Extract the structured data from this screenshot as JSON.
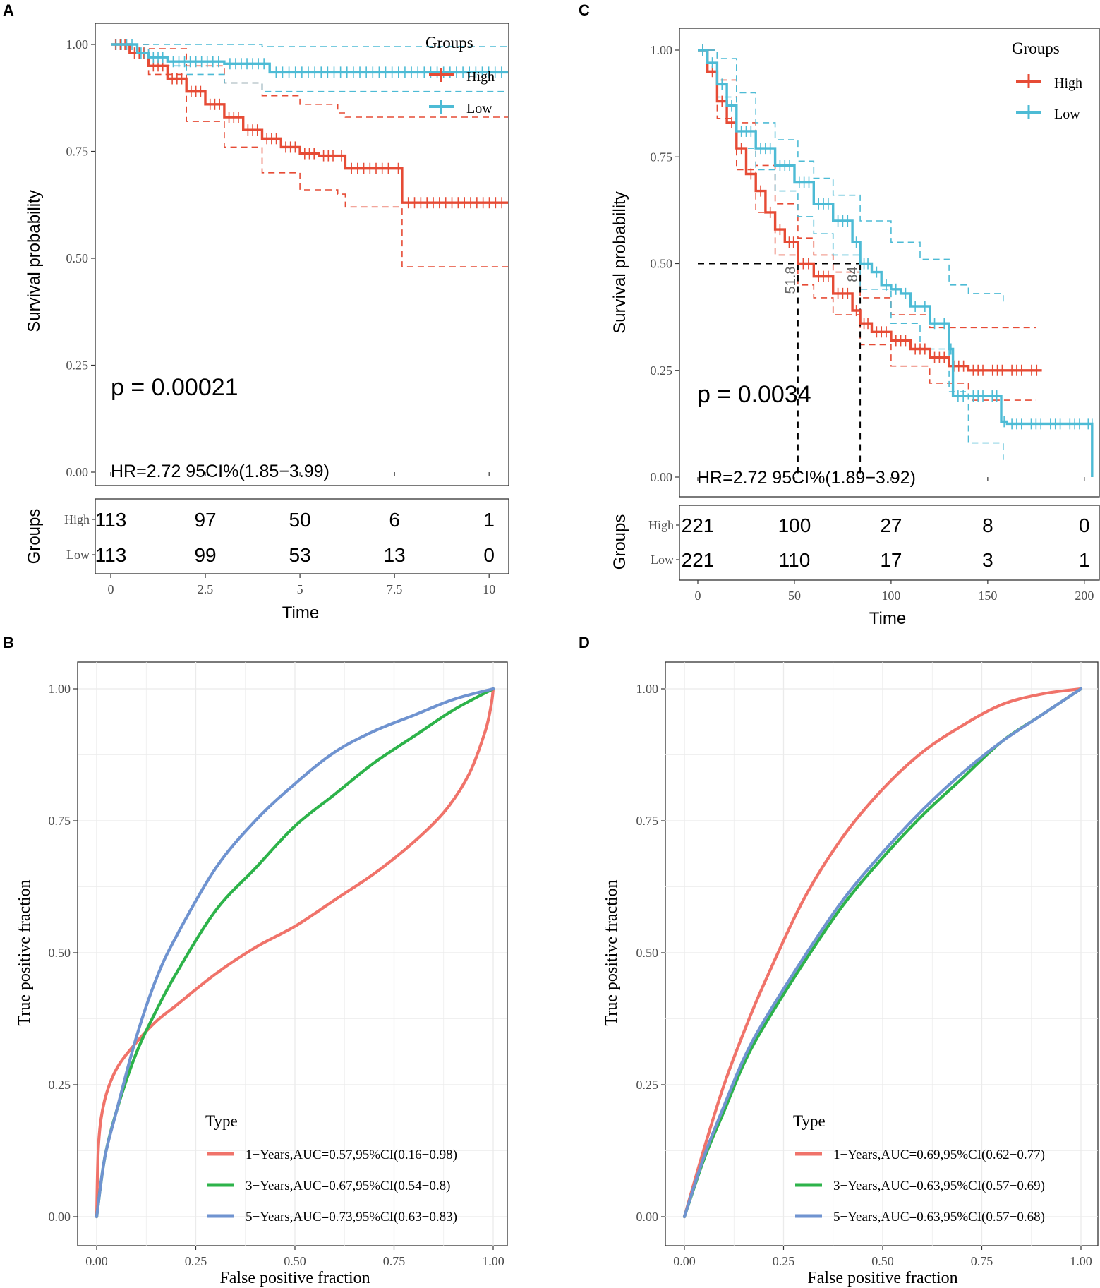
{
  "figure": {
    "panels": [
      {
        "id": "A",
        "label": "A"
      },
      {
        "id": "B",
        "label": "B"
      },
      {
        "id": "C",
        "label": "C"
      },
      {
        "id": "D",
        "label": "D"
      }
    ]
  },
  "colors": {
    "high": "#E64B35",
    "low": "#4DBBD5",
    "roc1": "#F0736A",
    "roc3": "#2DB34A",
    "roc5": "#6F93D0"
  },
  "chart_data": [
    {
      "panel": "A",
      "type": "line",
      "subtype": "kaplan-meier",
      "ylabel": "Survival probability",
      "xlabel": "Time",
      "xlim": [
        0,
        10.5
      ],
      "ylim": [
        0,
        1
      ],
      "xticks": [
        "0",
        "2.5",
        "5",
        "7.5",
        "10"
      ],
      "yticks": [
        "0.00",
        "0.25",
        "0.50",
        "0.75",
        "1.00"
      ],
      "legend_title": "Groups",
      "legend": [
        "High",
        "Low"
      ],
      "pvalue": "p = 0.00021",
      "hr_text": "HR=2.72 95CI%(1.85−3.99)",
      "series": [
        {
          "name": "High",
          "x": [
            0,
            0.5,
            1,
            1.5,
            2,
            2.5,
            3,
            3.5,
            4,
            4.5,
            5,
            5.5,
            6,
            6.2,
            7.5,
            7.7,
            10.5
          ],
          "y": [
            1.0,
            0.98,
            0.95,
            0.92,
            0.89,
            0.86,
            0.83,
            0.8,
            0.78,
            0.76,
            0.745,
            0.74,
            0.74,
            0.71,
            0.71,
            0.63,
            0.63
          ]
        },
        {
          "name": "Low",
          "x": [
            0,
            0.7,
            1,
            1.5,
            3.0,
            4.2,
            10.5
          ],
          "y": [
            1.0,
            0.98,
            0.97,
            0.96,
            0.955,
            0.935,
            0.935
          ]
        }
      ],
      "ci": [
        {
          "name": "High upper",
          "x": [
            0,
            1,
            2,
            3,
            4,
            5,
            6,
            6.2,
            7.5,
            10.5
          ],
          "y": [
            1.0,
            0.99,
            0.95,
            0.91,
            0.88,
            0.86,
            0.84,
            0.83,
            0.83,
            0.83
          ]
        },
        {
          "name": "High lower",
          "x": [
            0,
            1,
            2,
            3,
            4,
            5,
            6,
            6.2,
            7.5,
            7.7,
            10.5
          ],
          "y": [
            1.0,
            0.93,
            0.82,
            0.76,
            0.7,
            0.66,
            0.65,
            0.62,
            0.62,
            0.48,
            0.48
          ]
        },
        {
          "name": "Low upper",
          "x": [
            0,
            2,
            4,
            10.5
          ],
          "y": [
            1.0,
            1.0,
            0.995,
            0.995
          ]
        },
        {
          "name": "Low lower",
          "x": [
            0,
            1,
            2,
            3,
            4,
            10.5
          ],
          "y": [
            1.0,
            0.95,
            0.93,
            0.91,
            0.89,
            0.89
          ]
        }
      ],
      "risk_table": {
        "ylabel": "Groups",
        "rows": [
          {
            "label": "High",
            "values": [
              "113",
              "97",
              "50",
              "6",
              "1"
            ]
          },
          {
            "label": "Low",
            "values": [
              "113",
              "99",
              "53",
              "13",
              "0"
            ]
          }
        ]
      }
    },
    {
      "panel": "C",
      "type": "line",
      "subtype": "kaplan-meier",
      "ylabel": "Survival probability",
      "xlabel": "Time",
      "xlim": [
        0,
        207
      ],
      "ylim": [
        0,
        1
      ],
      "xticks": [
        "0",
        "50",
        "100",
        "150",
        "200"
      ],
      "yticks": [
        "0.00",
        "0.25",
        "0.50",
        "0.75",
        "1.00"
      ],
      "legend_title": "Groups",
      "legend": [
        "High",
        "Low"
      ],
      "pvalue": "p = 0.0034",
      "hr_text": "HR=2.72 95CI%(1.89−3.92)",
      "medians": [
        {
          "x": 51.8,
          "label": "51.8"
        },
        {
          "x": 84,
          "label": "84"
        }
      ],
      "series": [
        {
          "name": "High",
          "x": [
            0,
            5,
            10,
            15,
            20,
            25,
            30,
            35,
            40,
            45,
            51.8,
            60,
            70,
            80,
            84,
            90,
            100,
            110,
            120,
            130,
            140,
            150,
            160,
            170,
            178
          ],
          "y": [
            1.0,
            0.95,
            0.88,
            0.83,
            0.77,
            0.71,
            0.67,
            0.62,
            0.58,
            0.55,
            0.5,
            0.47,
            0.43,
            0.39,
            0.36,
            0.34,
            0.32,
            0.3,
            0.28,
            0.26,
            0.25,
            0.25,
            0.25,
            0.25,
            0.25
          ]
        },
        {
          "name": "Low",
          "x": [
            0,
            5,
            10,
            15,
            20,
            30,
            40,
            50,
            60,
            70,
            80,
            84,
            90,
            95,
            100,
            105,
            110,
            115,
            120,
            125,
            130,
            132,
            140,
            150,
            157,
            160,
            170,
            180,
            190,
            200,
            204,
            204
          ],
          "y": [
            1.0,
            0.97,
            0.92,
            0.87,
            0.81,
            0.77,
            0.73,
            0.69,
            0.64,
            0.6,
            0.55,
            0.5,
            0.48,
            0.45,
            0.44,
            0.43,
            0.4,
            0.4,
            0.36,
            0.36,
            0.3,
            0.19,
            0.19,
            0.19,
            0.13,
            0.125,
            0.125,
            0.125,
            0.125,
            0.125,
            0.125,
            0.0
          ]
        }
      ],
      "ci": [
        {
          "name": "High upper",
          "x": [
            0,
            10,
            20,
            30,
            40,
            51.8,
            60,
            70,
            84,
            100,
            120,
            140,
            150,
            175
          ],
          "y": [
            1.0,
            0.93,
            0.83,
            0.73,
            0.64,
            0.56,
            0.52,
            0.48,
            0.42,
            0.38,
            0.35,
            0.35,
            0.35,
            0.35
          ]
        },
        {
          "name": "High lower",
          "x": [
            0,
            10,
            20,
            30,
            40,
            51.8,
            60,
            70,
            84,
            100,
            120,
            140,
            150,
            175
          ],
          "y": [
            1.0,
            0.84,
            0.72,
            0.62,
            0.52,
            0.45,
            0.42,
            0.38,
            0.31,
            0.26,
            0.22,
            0.18,
            0.18,
            0.18
          ]
        },
        {
          "name": "Low upper",
          "x": [
            0,
            10,
            20,
            30,
            40,
            51.8,
            60,
            70,
            84,
            100,
            115,
            130,
            140,
            155,
            158
          ],
          "y": [
            1.0,
            0.98,
            0.9,
            0.83,
            0.79,
            0.74,
            0.7,
            0.66,
            0.6,
            0.55,
            0.51,
            0.45,
            0.43,
            0.43,
            0.4
          ]
        },
        {
          "name": "Low lower",
          "x": [
            0,
            10,
            20,
            30,
            40,
            51.8,
            60,
            70,
            84,
            100,
            115,
            130,
            140,
            155,
            158
          ],
          "y": [
            1.0,
            0.89,
            0.77,
            0.72,
            0.67,
            0.61,
            0.57,
            0.52,
            0.44,
            0.36,
            0.3,
            0.2,
            0.08,
            0.08,
            0.04
          ]
        }
      ],
      "risk_table": {
        "ylabel": "Groups",
        "rows": [
          {
            "label": "High",
            "values": [
              "221",
              "100",
              "27",
              "8",
              "0"
            ]
          },
          {
            "label": "Low",
            "values": [
              "221",
              "110",
              "17",
              "3",
              "1"
            ]
          }
        ]
      }
    },
    {
      "panel": "B",
      "type": "line",
      "subtype": "roc",
      "xlabel": "False positive fraction",
      "ylabel": "True positive fraction",
      "xlim": [
        0,
        1
      ],
      "ylim": [
        0,
        1
      ],
      "xticks": [
        "0.00",
        "0.25",
        "0.50",
        "0.75",
        "1.00"
      ],
      "yticks": [
        "0.00",
        "0.25",
        "0.50",
        "0.75",
        "1.00"
      ],
      "legend_title": "Type",
      "series": [
        {
          "name": "1−Years,AUC=0.57,95%CI(0.16−0.98)",
          "color": "#F0736A",
          "x": [
            0,
            0.005,
            0.02,
            0.05,
            0.1,
            0.15,
            0.2,
            0.3,
            0.4,
            0.5,
            0.6,
            0.7,
            0.8,
            0.88,
            0.94,
            0.98,
            0.995,
            1.0
          ],
          "y": [
            0,
            0.14,
            0.22,
            0.28,
            0.33,
            0.37,
            0.4,
            0.46,
            0.51,
            0.55,
            0.6,
            0.65,
            0.71,
            0.77,
            0.84,
            0.92,
            0.97,
            1.0
          ]
        },
        {
          "name": "3−Years,AUC=0.67,95%CI(0.54−0.8)",
          "color": "#2DB34A",
          "x": [
            0,
            0.02,
            0.05,
            0.1,
            0.15,
            0.2,
            0.3,
            0.4,
            0.5,
            0.6,
            0.7,
            0.8,
            0.9,
            1.0
          ],
          "y": [
            0,
            0.11,
            0.2,
            0.31,
            0.39,
            0.46,
            0.58,
            0.66,
            0.74,
            0.8,
            0.86,
            0.91,
            0.96,
            1.0
          ]
        },
        {
          "name": "5−Years,AUC=0.73,95%CI(0.63−0.83)",
          "color": "#6F93D0",
          "x": [
            0,
            0.02,
            0.05,
            0.1,
            0.15,
            0.2,
            0.3,
            0.4,
            0.5,
            0.6,
            0.7,
            0.8,
            0.9,
            1.0
          ],
          "y": [
            0,
            0.11,
            0.2,
            0.34,
            0.45,
            0.53,
            0.66,
            0.75,
            0.82,
            0.88,
            0.92,
            0.95,
            0.98,
            1.0
          ]
        }
      ]
    },
    {
      "panel": "D",
      "type": "line",
      "subtype": "roc",
      "xlabel": "False positive fraction",
      "ylabel": "True positive fraction",
      "xlim": [
        0,
        1
      ],
      "ylim": [
        0,
        1
      ],
      "xticks": [
        "0.00",
        "0.25",
        "0.50",
        "0.75",
        "1.00"
      ],
      "yticks": [
        "0.00",
        "0.25",
        "0.50",
        "0.75",
        "1.00"
      ],
      "legend_title": "Type",
      "series": [
        {
          "name": "1−Years,AUC=0.69,95%CI(0.62−0.77)",
          "color": "#F0736A",
          "x": [
            0,
            0.05,
            0.1,
            0.15,
            0.2,
            0.3,
            0.4,
            0.5,
            0.6,
            0.7,
            0.8,
            0.9,
            1.0
          ],
          "y": [
            0,
            0.13,
            0.25,
            0.35,
            0.44,
            0.6,
            0.72,
            0.81,
            0.88,
            0.93,
            0.97,
            0.99,
            1.0
          ]
        },
        {
          "name": "3−Years,AUC=0.63,95%CI(0.57−0.69)",
          "color": "#2DB34A",
          "x": [
            0,
            0.05,
            0.1,
            0.15,
            0.2,
            0.3,
            0.4,
            0.5,
            0.6,
            0.7,
            0.8,
            0.9,
            1.0
          ],
          "y": [
            0,
            0.11,
            0.2,
            0.29,
            0.36,
            0.48,
            0.59,
            0.68,
            0.76,
            0.83,
            0.9,
            0.95,
            1.0
          ]
        },
        {
          "name": "5−Years,AUC=0.63,95%CI(0.57−0.68)",
          "color": "#6F93D0",
          "x": [
            0,
            0.05,
            0.1,
            0.15,
            0.2,
            0.3,
            0.4,
            0.5,
            0.6,
            0.7,
            0.8,
            0.9,
            1.0
          ],
          "y": [
            0,
            0.115,
            0.21,
            0.3,
            0.37,
            0.49,
            0.6,
            0.69,
            0.77,
            0.84,
            0.9,
            0.95,
            1.0
          ]
        }
      ]
    }
  ]
}
